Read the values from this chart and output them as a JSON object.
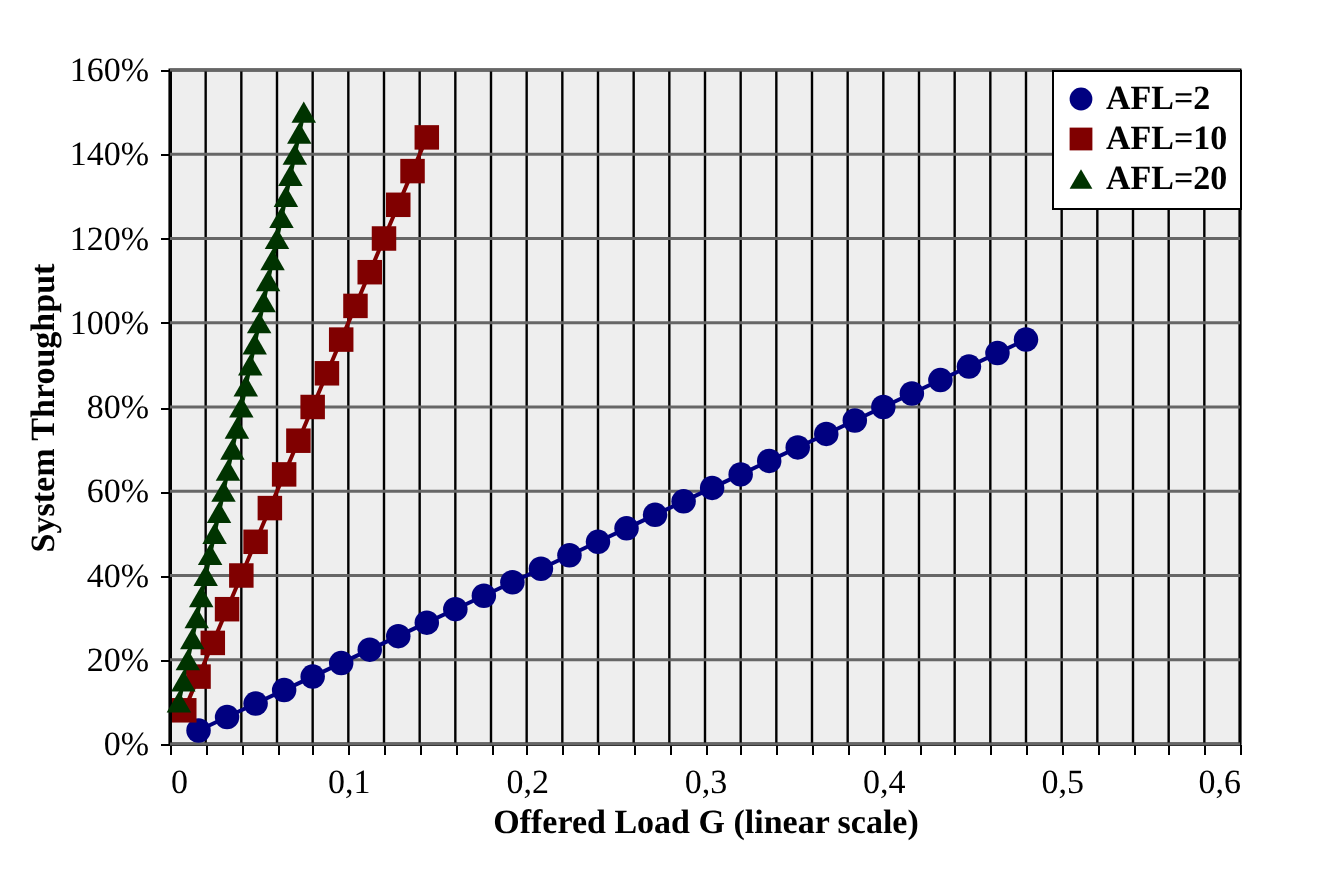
{
  "chart_data": {
    "type": "line",
    "xlabel": "Offered Load G (linear scale)",
    "ylabel": "System Throughput",
    "xlim": [
      0,
      0.6
    ],
    "ylim": [
      0,
      160
    ],
    "xticks": [
      0,
      {
        "value": 0.02,
        "label": null
      },
      {
        "value": 0.04,
        "label": null
      },
      {
        "value": 0.06,
        "label": null
      },
      {
        "value": 0.08,
        "label": null
      },
      {
        "value": 0.1,
        "label": "0,1"
      },
      {
        "value": 0.12,
        "label": null
      },
      {
        "value": 0.14,
        "label": null
      },
      {
        "value": 0.16,
        "label": null
      },
      {
        "value": 0.18,
        "label": null
      },
      {
        "value": 0.2,
        "label": "0,2"
      },
      {
        "value": 0.22,
        "label": null
      },
      {
        "value": 0.24,
        "label": null
      },
      {
        "value": 0.26,
        "label": null
      },
      {
        "value": 0.28,
        "label": null
      },
      {
        "value": 0.3,
        "label": "0,3"
      },
      {
        "value": 0.32,
        "label": null
      },
      {
        "value": 0.34,
        "label": null
      },
      {
        "value": 0.36,
        "label": null
      },
      {
        "value": 0.38,
        "label": null
      },
      {
        "value": 0.4,
        "label": "0,4"
      },
      {
        "value": 0.42,
        "label": null
      },
      {
        "value": 0.44,
        "label": null
      },
      {
        "value": 0.46,
        "label": null
      },
      {
        "value": 0.48,
        "label": null
      },
      {
        "value": 0.5,
        "label": "0,5"
      },
      {
        "value": 0.52,
        "label": null
      },
      {
        "value": 0.54,
        "label": null
      },
      {
        "value": 0.56,
        "label": null
      },
      {
        "value": 0.58,
        "label": null
      },
      {
        "value": 0.6,
        "label": "0,6"
      }
    ],
    "yticks": [
      {
        "value": 0,
        "label": "0%"
      },
      {
        "value": 20,
        "label": "20%"
      },
      {
        "value": 40,
        "label": "40%"
      },
      {
        "value": 60,
        "label": "60%"
      },
      {
        "value": 80,
        "label": "80%"
      },
      {
        "value": 100,
        "label": "100%"
      },
      {
        "value": 120,
        "label": "120%"
      },
      {
        "value": 140,
        "label": "140%"
      },
      {
        "value": 160,
        "label": "160%"
      }
    ],
    "grid": true,
    "legend": "top right",
    "series": [
      {
        "name": "AFL=2",
        "color": "#000080",
        "marker": "circle",
        "x": [
          0.016,
          0.032,
          0.048,
          0.064,
          0.08,
          0.096,
          0.112,
          0.128,
          0.144,
          0.16,
          0.176,
          0.192,
          0.208,
          0.224,
          0.24,
          0.256,
          0.272,
          0.288,
          0.304,
          0.32,
          0.336,
          0.352,
          0.368,
          0.384,
          0.4,
          0.416,
          0.432,
          0.448,
          0.464,
          0.48
        ],
        "values": [
          3.2,
          6.4,
          9.6,
          12.8,
          16,
          19.2,
          22.4,
          25.6,
          28.8,
          32,
          35.2,
          38.4,
          41.6,
          44.8,
          48,
          51.2,
          54.4,
          57.6,
          60.8,
          64,
          67.2,
          70.4,
          73.6,
          76.8,
          80,
          83.2,
          86.4,
          89.6,
          92.8,
          96
        ]
      },
      {
        "name": "AFL=10",
        "color": "#800000",
        "marker": "square",
        "x": [
          0.008,
          0.016,
          0.024,
          0.032,
          0.04,
          0.048,
          0.056,
          0.064,
          0.072,
          0.08,
          0.088,
          0.096,
          0.104,
          0.112,
          0.12,
          0.128,
          0.136,
          0.144
        ],
        "values": [
          8,
          16,
          24,
          32,
          40,
          48,
          56,
          64,
          72,
          80,
          88,
          96,
          104,
          112,
          120,
          128,
          136,
          144
        ]
      },
      {
        "name": "AFL=20",
        "color": "#003300",
        "marker": "triangle",
        "x": [
          0.005,
          0.0075,
          0.01,
          0.0125,
          0.015,
          0.0175,
          0.02,
          0.0225,
          0.025,
          0.0275,
          0.03,
          0.0325,
          0.035,
          0.0375,
          0.04,
          0.0425,
          0.045,
          0.0475,
          0.05,
          0.0525,
          0.055,
          0.0575,
          0.06,
          0.0625,
          0.065,
          0.0675,
          0.07,
          0.0725,
          0.075
        ],
        "values": [
          10,
          15,
          20,
          25,
          30,
          35,
          40,
          45,
          50,
          55,
          60,
          65,
          70,
          75,
          80,
          85,
          90,
          95,
          100,
          105,
          110,
          115,
          120,
          125,
          130,
          135,
          140,
          145,
          150
        ]
      }
    ]
  }
}
